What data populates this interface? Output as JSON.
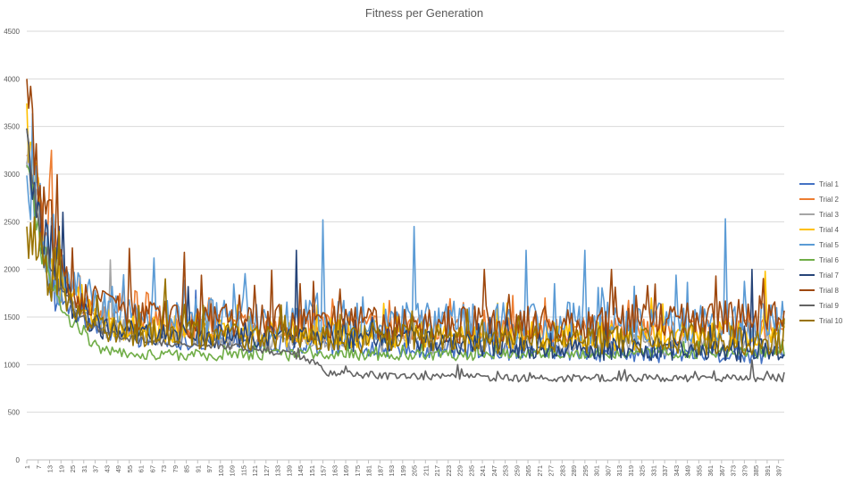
{
  "chart_data": {
    "type": "line",
    "title": "Fitness per Generation",
    "xlabel": "",
    "ylabel": "",
    "ylim": [
      0,
      4500
    ],
    "yticks": [
      0,
      500,
      1000,
      1500,
      2000,
      2500,
      3000,
      3500,
      4000,
      4500
    ],
    "x_range": [
      1,
      400
    ],
    "xtick_start": 1,
    "xtick_step": 6,
    "grid": "horizontal",
    "legend_position": "right",
    "series": [
      {
        "name": "Trial 1",
        "color": "#4472C4",
        "key_points": [
          [
            1,
            3300
          ],
          [
            10,
            1900
          ],
          [
            25,
            1550
          ],
          [
            40,
            1350
          ],
          [
            60,
            1270
          ],
          [
            100,
            1230
          ],
          [
            150,
            1200
          ],
          [
            200,
            1170
          ],
          [
            260,
            1130
          ],
          [
            330,
            1110
          ],
          [
            400,
            1100
          ]
        ],
        "spread": 90,
        "spikes": [
          [
            90,
            1780
          ],
          [
            152,
            1620
          ]
        ]
      },
      {
        "name": "Trial 2",
        "color": "#ED7D31",
        "key_points": [
          [
            1,
            3100
          ],
          [
            10,
            2400
          ],
          [
            25,
            1700
          ],
          [
            40,
            1500
          ],
          [
            60,
            1430
          ],
          [
            100,
            1400
          ],
          [
            150,
            1390
          ],
          [
            200,
            1380
          ],
          [
            260,
            1370
          ],
          [
            330,
            1360
          ],
          [
            400,
            1350
          ]
        ],
        "spread": 150,
        "spikes": [
          [
            14,
            3250
          ],
          [
            52,
            1900
          ]
        ]
      },
      {
        "name": "Trial 3",
        "color": "#A5A5A5",
        "key_points": [
          [
            1,
            3200
          ],
          [
            10,
            2200
          ],
          [
            25,
            1600
          ],
          [
            40,
            1400
          ],
          [
            60,
            1320
          ],
          [
            100,
            1280
          ],
          [
            150,
            1260
          ],
          [
            200,
            1240
          ],
          [
            260,
            1220
          ],
          [
            330,
            1210
          ],
          [
            400,
            1200
          ]
        ],
        "spread": 120,
        "spikes": [
          [
            45,
            2100
          ],
          [
            98,
            1700
          ]
        ]
      },
      {
        "name": "Trial 4",
        "color": "#FFC000",
        "key_points": [
          [
            1,
            3500
          ],
          [
            10,
            2300
          ],
          [
            25,
            1700
          ],
          [
            40,
            1450
          ],
          [
            60,
            1380
          ],
          [
            100,
            1350
          ],
          [
            150,
            1330
          ],
          [
            200,
            1310
          ],
          [
            260,
            1300
          ],
          [
            330,
            1300
          ],
          [
            400,
            1320
          ]
        ],
        "spread": 150,
        "spikes": [
          [
            390,
            1980
          ],
          [
            330,
            1700
          ]
        ]
      },
      {
        "name": "Trial 5",
        "color": "#5B9BD5",
        "key_points": [
          [
            1,
            3000
          ],
          [
            10,
            2300
          ],
          [
            25,
            1800
          ],
          [
            40,
            1600
          ],
          [
            60,
            1520
          ],
          [
            100,
            1480
          ],
          [
            150,
            1460
          ],
          [
            200,
            1450
          ],
          [
            260,
            1440
          ],
          [
            330,
            1440
          ],
          [
            400,
            1450
          ]
        ],
        "spread": 220,
        "spikes": [
          [
            157,
            2520
          ],
          [
            205,
            2450
          ],
          [
            264,
            2200
          ],
          [
            369,
            2530
          ],
          [
            295,
            2200
          ],
          [
            68,
            2120
          ]
        ]
      },
      {
        "name": "Trial 6",
        "color": "#70AD47",
        "key_points": [
          [
            1,
            3200
          ],
          [
            10,
            2000
          ],
          [
            25,
            1400
          ],
          [
            40,
            1170
          ],
          [
            60,
            1110
          ],
          [
            100,
            1100
          ],
          [
            150,
            1100
          ],
          [
            200,
            1100
          ],
          [
            260,
            1110
          ],
          [
            330,
            1120
          ],
          [
            400,
            1130
          ]
        ],
        "spread": 60,
        "spikes": []
      },
      {
        "name": "Trial 7",
        "color": "#264478",
        "key_points": [
          [
            1,
            3350
          ],
          [
            10,
            2300
          ],
          [
            25,
            1600
          ],
          [
            40,
            1400
          ],
          [
            60,
            1330
          ],
          [
            100,
            1300
          ],
          [
            150,
            1280
          ],
          [
            200,
            1250
          ],
          [
            260,
            1200
          ],
          [
            330,
            1160
          ],
          [
            400,
            1140
          ]
        ],
        "spread": 130,
        "spikes": [
          [
            20,
            2600
          ],
          [
            143,
            2200
          ],
          [
            383,
            2000
          ],
          [
            86,
            1820
          ]
        ]
      },
      {
        "name": "Trial 8",
        "color": "#9E480E",
        "key_points": [
          [
            1,
            4000
          ],
          [
            10,
            2500
          ],
          [
            25,
            1800
          ],
          [
            40,
            1600
          ],
          [
            60,
            1500
          ],
          [
            100,
            1450
          ],
          [
            150,
            1430
          ],
          [
            200,
            1420
          ],
          [
            260,
            1430
          ],
          [
            330,
            1450
          ],
          [
            400,
            1470
          ]
        ],
        "spread": 200,
        "spikes": [
          [
            1,
            4000
          ],
          [
            55,
            2220
          ],
          [
            84,
            2180
          ],
          [
            130,
            1990
          ],
          [
            242,
            2000
          ],
          [
            309,
            2000
          ],
          [
            364,
            1930
          ]
        ]
      },
      {
        "name": "Trial 9",
        "color": "#636363",
        "key_points": [
          [
            1,
            3400
          ],
          [
            10,
            2100
          ],
          [
            25,
            1600
          ],
          [
            40,
            1350
          ],
          [
            60,
            1250
          ],
          [
            100,
            1200
          ],
          [
            140,
            1120
          ],
          [
            150,
            1050
          ],
          [
            160,
            900
          ],
          [
            200,
            880
          ],
          [
            260,
            860
          ],
          [
            330,
            860
          ],
          [
            400,
            860
          ]
        ],
        "spread": 40,
        "spikes": [
          [
            383,
            1050
          ],
          [
            228,
            1000
          ]
        ]
      },
      {
        "name": "Trial 10",
        "color": "#997300",
        "key_points": [
          [
            1,
            2400
          ],
          [
            10,
            2100
          ],
          [
            25,
            1600
          ],
          [
            40,
            1400
          ],
          [
            60,
            1330
          ],
          [
            100,
            1300
          ],
          [
            150,
            1280
          ],
          [
            200,
            1270
          ],
          [
            260,
            1260
          ],
          [
            330,
            1250
          ],
          [
            400,
            1250
          ]
        ],
        "spread": 150,
        "spikes": [
          [
            18,
            2400
          ],
          [
            74,
            1900
          ]
        ]
      }
    ]
  }
}
